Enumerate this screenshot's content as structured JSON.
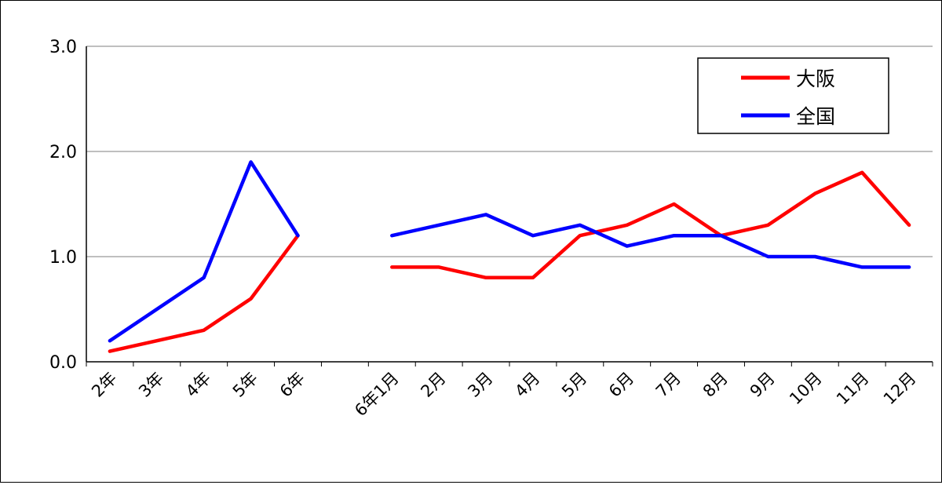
{
  "chart_data": {
    "type": "line",
    "title": "",
    "xlabel": "",
    "ylabel": "",
    "ylim": [
      0,
      3
    ],
    "yticks": [
      "0.0",
      "1.0",
      "2.0",
      "3.0"
    ],
    "grid": true,
    "legend_position": "top-right",
    "categories": [
      "2年",
      "3年",
      "4年",
      "5年",
      "6年",
      "",
      "6年1月",
      "2月",
      "3月",
      "4月",
      "5月",
      "6月",
      "7月",
      "8月",
      "9月",
      "10月",
      "11月",
      "12月"
    ],
    "series": [
      {
        "name": "大阪",
        "color": "#ff0000",
        "values": [
          0.1,
          0.2,
          0.3,
          0.6,
          1.2,
          null,
          0.9,
          0.9,
          0.8,
          0.8,
          1.2,
          1.3,
          1.5,
          1.2,
          1.3,
          1.6,
          1.8,
          1.3
        ]
      },
      {
        "name": "全国",
        "color": "#0000ff",
        "values": [
          0.2,
          0.5,
          0.8,
          1.9,
          1.2,
          null,
          1.2,
          1.3,
          1.4,
          1.2,
          1.3,
          1.1,
          1.2,
          1.2,
          1.0,
          1.0,
          0.9,
          0.9
        ]
      }
    ]
  }
}
